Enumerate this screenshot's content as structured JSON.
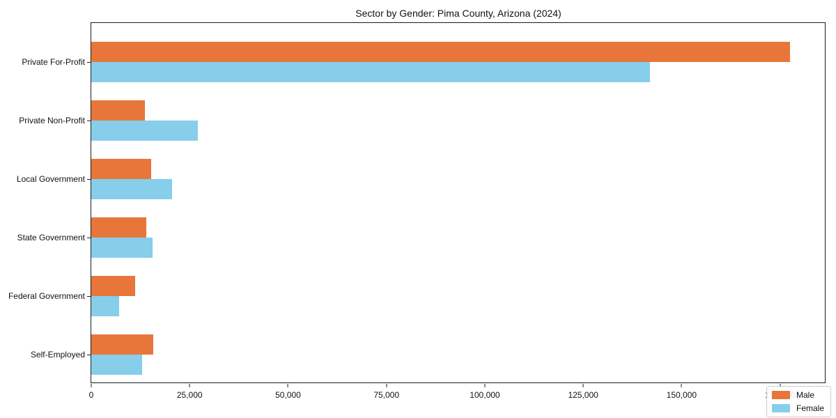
{
  "title": "Sector by Gender: Pima County, Arizona (2024)",
  "chart_data": {
    "type": "bar",
    "orientation": "horizontal",
    "title": "Sector by Gender: Pima County, Arizona (2024)",
    "xlabel": "",
    "ylabel": "",
    "categories": [
      "Private For-Profit",
      "Private Non-Profit",
      "Local Government",
      "State Government",
      "Federal Government",
      "Self-Employed"
    ],
    "series": [
      {
        "name": "Male",
        "color": "#e8763b",
        "values": [
          177500,
          13700,
          15200,
          13900,
          11100,
          15700
        ]
      },
      {
        "name": "Female",
        "color": "#87ceeb",
        "values": [
          142000,
          27000,
          20500,
          15500,
          7000,
          12900
        ]
      }
    ],
    "xlim": [
      0,
      186400
    ],
    "x_ticks": [
      0,
      25000,
      50000,
      75000,
      100000,
      125000,
      150000,
      175000
    ],
    "x_tick_labels": [
      "0",
      "25,000",
      "50,000",
      "75,000",
      "100,000",
      "125,000",
      "150,000",
      "175,000"
    ],
    "grid": false,
    "legend": {
      "position": "lower right",
      "entries": [
        "Male",
        "Female"
      ]
    }
  },
  "colors": {
    "male": "#e8763b",
    "female": "#87ceeb",
    "axis": "#1a1a1a",
    "legend_border": "#cccccc",
    "background": "#ffffff"
  }
}
